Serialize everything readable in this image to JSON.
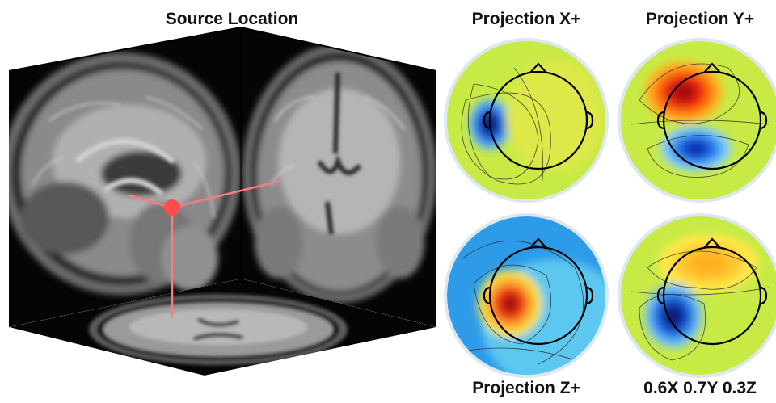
{
  "source_panel": {
    "title": "Source Location"
  },
  "projections": [
    {
      "label": "Projection X+",
      "label_position": "top"
    },
    {
      "label": "Projection Y+",
      "label_position": "top"
    },
    {
      "label": "Projection Z+",
      "label_position": "bottom"
    },
    {
      "label": "0.6X 0.7Y 0.3Z",
      "label_position": "bottom"
    }
  ],
  "colors": {
    "source_marker": "#ff4d4d",
    "axis_lines": "#ff7a7a",
    "topo_ring": "#dde7f2",
    "head_outline": "#000000"
  }
}
